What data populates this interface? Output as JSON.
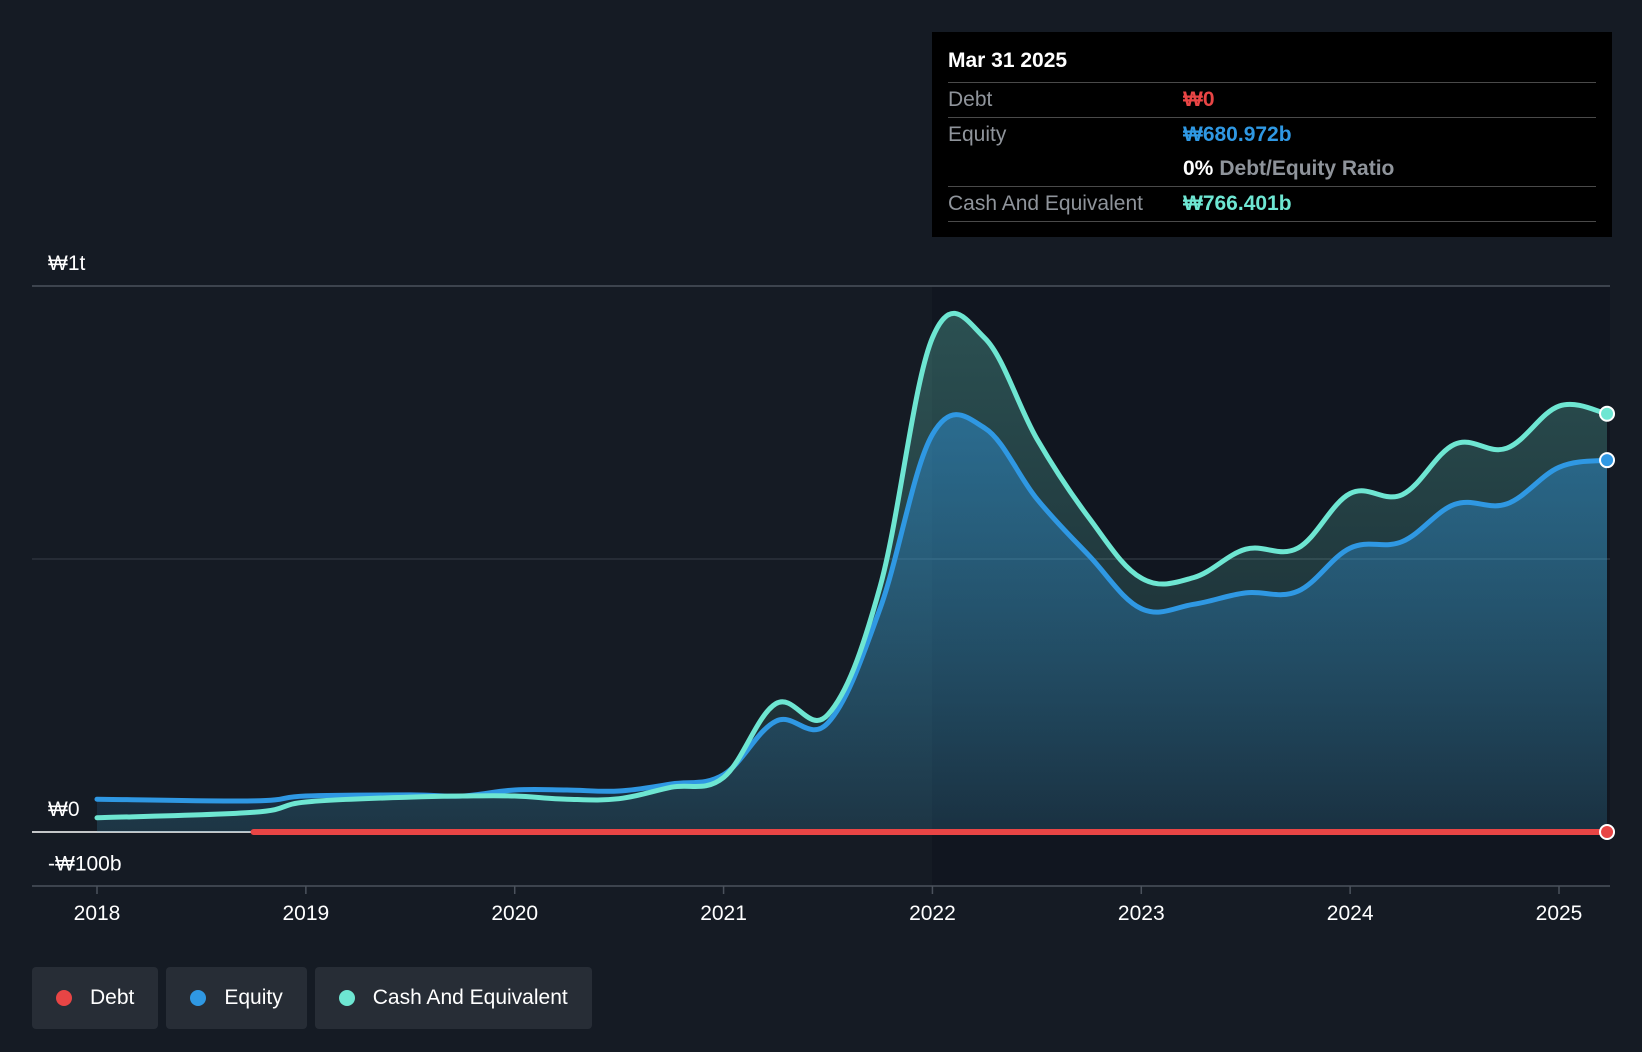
{
  "tooltip": {
    "date": "Mar 31 2025",
    "debt_label": "Debt",
    "debt_value": "₩0",
    "equity_label": "Equity",
    "equity_value": "₩680.972b",
    "ratio_value": "0%",
    "ratio_label": "Debt/Equity Ratio",
    "cash_label": "Cash And Equivalent",
    "cash_value": "₩766.401b"
  },
  "legend": {
    "debt": "Debt",
    "equity": "Equity",
    "cash": "Cash And Equivalent"
  },
  "colors": {
    "background": "#151b24",
    "debt": "#e84545",
    "equity": "#2f98e3",
    "cash": "#6ee6d2"
  },
  "chart_data": {
    "type": "area",
    "title": "",
    "xlabel": "",
    "ylabel": "",
    "y_tick_labels": [
      "₩1t",
      "₩0",
      "-₩100b"
    ],
    "y_ticks": [
      1000,
      0,
      -100
    ],
    "ylim": [
      -100,
      1000
    ],
    "x_tick_labels": [
      "2018",
      "2019",
      "2020",
      "2021",
      "2022",
      "2023",
      "2024",
      "2025"
    ],
    "x_ticks": [
      2018,
      2019,
      2020,
      2021,
      2022,
      2023,
      2024,
      2025
    ],
    "xlim": [
      2017.7,
      2025.25
    ],
    "gridlines": [
      1000,
      500
    ],
    "legend_position": "bottom-left",
    "series": [
      {
        "name": "Debt",
        "x": [
          2018.75,
          2019.0,
          2020.0,
          2021.0,
          2022.0,
          2023.0,
          2024.0,
          2025.0,
          2025.23
        ],
        "values": [
          0,
          0,
          0,
          0,
          0,
          0,
          0,
          0,
          0
        ]
      },
      {
        "name": "Equity",
        "x": [
          2018.0,
          2018.75,
          2019.0,
          2019.5,
          2019.75,
          2020.0,
          2020.25,
          2020.5,
          2020.75,
          2021.0,
          2021.25,
          2021.5,
          2021.75,
          2022.0,
          2022.25,
          2022.5,
          2022.75,
          2023.0,
          2023.25,
          2023.5,
          2023.75,
          2024.0,
          2024.25,
          2024.5,
          2024.75,
          2025.0,
          2025.23
        ],
        "values": [
          60,
          57,
          66,
          68,
          66,
          77,
          77,
          75,
          88,
          105,
          203,
          200,
          410,
          728,
          740,
          610,
          506,
          409,
          417,
          438,
          441,
          520,
          532,
          600,
          601,
          668,
          681
        ]
      },
      {
        "name": "Cash And Equivalent",
        "x": [
          2018.0,
          2018.75,
          2019.0,
          2019.5,
          2019.75,
          2020.0,
          2020.25,
          2020.5,
          2020.75,
          2021.0,
          2021.25,
          2021.5,
          2021.75,
          2022.0,
          2022.25,
          2022.5,
          2022.75,
          2023.0,
          2023.25,
          2023.5,
          2023.75,
          2024.0,
          2024.25,
          2024.5,
          2024.75,
          2025.0,
          2025.23
        ],
        "values": [
          26,
          36,
          55,
          64,
          66,
          66,
          60,
          61,
          82,
          100,
          235,
          215,
          450,
          905,
          905,
          720,
          575,
          465,
          466,
          518,
          520,
          620,
          618,
          710,
          703,
          780,
          766
        ]
      }
    ]
  }
}
